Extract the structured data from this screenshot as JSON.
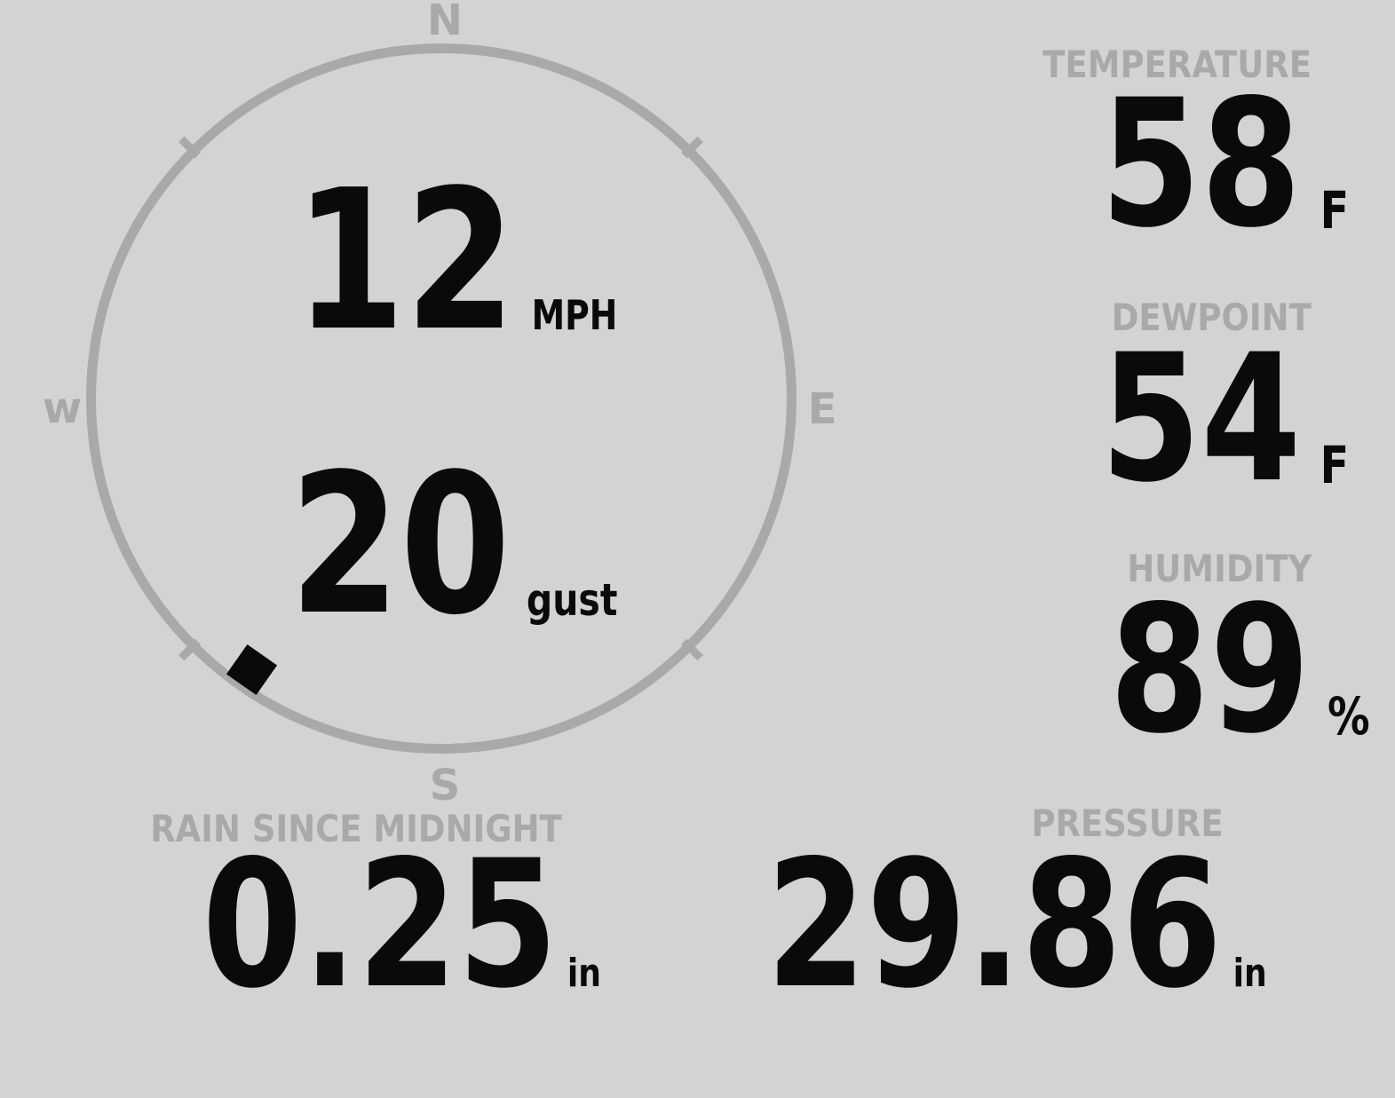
{
  "palette": {
    "background": "#d3d3d3",
    "muted": "#a9a9a9",
    "ink": "#0a0a0a"
  },
  "compass": {
    "north": "N",
    "east": "E",
    "south": "S",
    "west": "w",
    "speed": {
      "value": "12",
      "unit": "MPH"
    },
    "gust": {
      "value": "20",
      "unit": "gust"
    },
    "wind_direction_deg": 215
  },
  "metrics": {
    "temperature": {
      "label": "TEMPERATURE",
      "value": "58",
      "unit": "F"
    },
    "dewpoint": {
      "label": "DEWPOINT",
      "value": "54",
      "unit": "F"
    },
    "humidity": {
      "label": "HUMIDITY",
      "value": "89",
      "unit": "%"
    },
    "rain_since_midnight": {
      "label": "RAIN SINCE MIDNIGHT",
      "value": "0.25",
      "unit": "in"
    },
    "pressure": {
      "label": "PRESSURE",
      "value": "29.86",
      "unit": "in"
    }
  }
}
